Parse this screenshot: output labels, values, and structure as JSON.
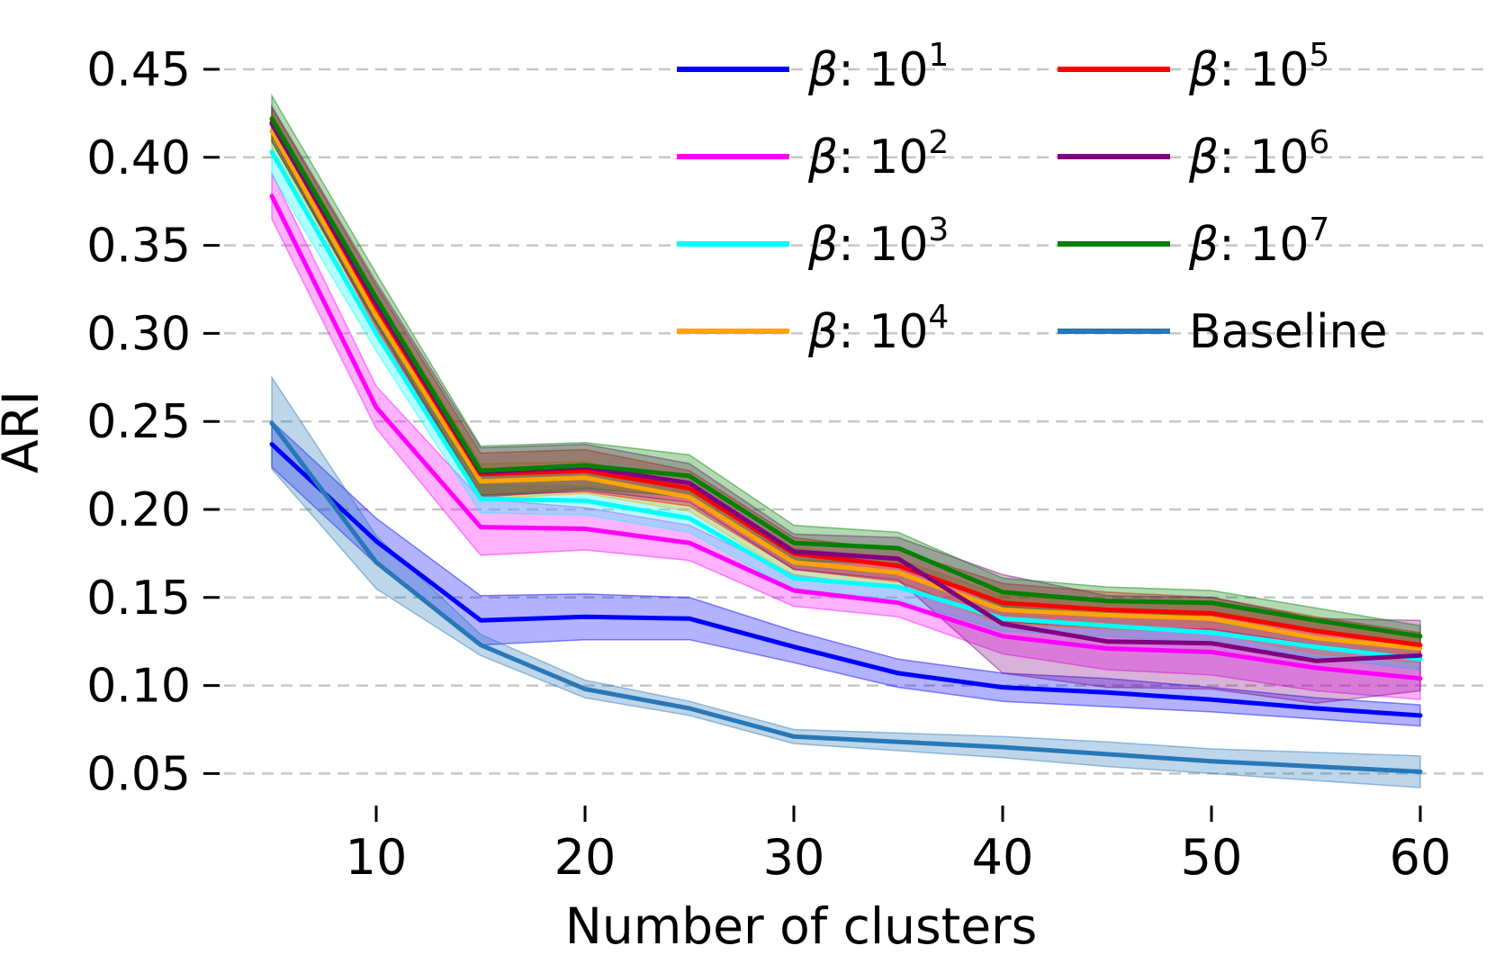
{
  "chart_data": {
    "type": "line",
    "title": "",
    "xlabel": "Number of clusters",
    "ylabel": "ARI",
    "grid": "horizontal-dashed",
    "legend": {
      "position": "upper-center",
      "columns": 2
    },
    "x": [
      5,
      10,
      15,
      20,
      25,
      30,
      35,
      40,
      45,
      50,
      55,
      60
    ],
    "x_tick_values": [
      10,
      20,
      30,
      40,
      50,
      60
    ],
    "x_tick_labels": [
      "10",
      "20",
      "30",
      "40",
      "50",
      "60"
    ],
    "y_tick_values": [
      0.05,
      0.1,
      0.15,
      0.2,
      0.25,
      0.3,
      0.35,
      0.4,
      0.45
    ],
    "y_tick_labels": [
      "0.05",
      "0.10",
      "0.15",
      "0.20",
      "0.25",
      "0.30",
      "0.35",
      "0.40",
      "0.45"
    ],
    "xlim": [
      1.8,
      63.0
    ],
    "ylim": [
      0.03,
      0.47
    ],
    "series": [
      {
        "id": "beta-1e1",
        "label": "β: 10^1",
        "label_italic": "β",
        "label_rest": ": 10",
        "label_sup": "1",
        "color": "#0000ff",
        "values": [
          0.237,
          0.182,
          0.137,
          0.139,
          0.138,
          0.122,
          0.107,
          0.099,
          0.096,
          0.092,
          0.087,
          0.083
        ],
        "band": [
          0.013,
          0.013,
          0.014,
          0.013,
          0.012,
          0.009,
          0.008,
          0.008,
          0.008,
          0.007,
          0.006,
          0.006
        ]
      },
      {
        "id": "beta-1e2",
        "label": "β: 10^2",
        "label_italic": "β",
        "label_rest": ": 10",
        "label_sup": "2",
        "color": "#ff00ff",
        "values": [
          0.378,
          0.258,
          0.19,
          0.189,
          0.181,
          0.154,
          0.147,
          0.128,
          0.121,
          0.119,
          0.11,
          0.104
        ],
        "band": [
          0.013,
          0.012,
          0.016,
          0.012,
          0.01,
          0.009,
          0.008,
          0.01,
          0.012,
          0.013,
          0.013,
          0.012
        ]
      },
      {
        "id": "beta-1e3",
        "label": "β: 10^3",
        "label_italic": "β",
        "label_rest": ": 10",
        "label_sup": "3",
        "color": "#00ffff",
        "values": [
          0.403,
          0.3,
          0.206,
          0.205,
          0.195,
          0.161,
          0.156,
          0.138,
          0.134,
          0.13,
          0.122,
          0.115
        ],
        "band": [
          0.013,
          0.01,
          0.008,
          0.008,
          0.008,
          0.007,
          0.007,
          0.007,
          0.006,
          0.006,
          0.006,
          0.006
        ]
      },
      {
        "id": "beta-1e4",
        "label": "β: 10^4",
        "label_italic": "β",
        "label_rest": ": 10",
        "label_sup": "4",
        "color": "#ffa500",
        "values": [
          0.415,
          0.31,
          0.216,
          0.218,
          0.207,
          0.17,
          0.164,
          0.143,
          0.14,
          0.138,
          0.127,
          0.121
        ],
        "band": [
          0.01,
          0.012,
          0.01,
          0.009,
          0.008,
          0.008,
          0.008,
          0.008,
          0.008,
          0.008,
          0.009,
          0.008
        ]
      },
      {
        "id": "beta-1e5",
        "label": "β: 10^5",
        "label_italic": "β",
        "label_rest": ": 10",
        "label_sup": "5",
        "color": "#ff0000",
        "values": [
          0.42,
          0.315,
          0.22,
          0.222,
          0.212,
          0.175,
          0.168,
          0.147,
          0.143,
          0.141,
          0.131,
          0.123
        ],
        "band": [
          0.008,
          0.012,
          0.012,
          0.012,
          0.01,
          0.009,
          0.009,
          0.011,
          0.01,
          0.009,
          0.008,
          0.007
        ]
      },
      {
        "id": "beta-1e6",
        "label": "β: 10^6",
        "label_italic": "β",
        "label_rest": ": 10",
        "label_sup": "6",
        "color": "#800080",
        "values": [
          0.419,
          0.317,
          0.221,
          0.224,
          0.215,
          0.176,
          0.172,
          0.135,
          0.125,
          0.124,
          0.114,
          0.117
        ],
        "band": [
          0.01,
          0.012,
          0.014,
          0.013,
          0.011,
          0.01,
          0.012,
          0.028,
          0.026,
          0.026,
          0.024,
          0.02
        ]
      },
      {
        "id": "beta-1e7",
        "label": "β: 10^7",
        "label_italic": "β",
        "label_rest": ": 10",
        "label_sup": "7",
        "color": "#008000",
        "values": [
          0.422,
          0.32,
          0.222,
          0.225,
          0.219,
          0.181,
          0.178,
          0.153,
          0.148,
          0.147,
          0.137,
          0.128
        ],
        "band": [
          0.013,
          0.014,
          0.014,
          0.013,
          0.012,
          0.01,
          0.009,
          0.008,
          0.008,
          0.007,
          0.007,
          0.006
        ]
      },
      {
        "id": "baseline",
        "label": "Baseline",
        "label_italic": "",
        "label_rest": "Baseline",
        "label_sup": "",
        "color": "#2878b8",
        "values": [
          0.249,
          0.17,
          0.123,
          0.098,
          0.087,
          0.071,
          0.068,
          0.065,
          0.061,
          0.057,
          0.054,
          0.051
        ],
        "band": [
          0.026,
          0.015,
          0.006,
          0.005,
          0.004,
          0.004,
          0.005,
          0.006,
          0.007,
          0.007,
          0.008,
          0.009
        ]
      }
    ],
    "colors": {
      "grid": "#c6c6c6",
      "text": "#000000",
      "background": "#ffffff"
    }
  }
}
